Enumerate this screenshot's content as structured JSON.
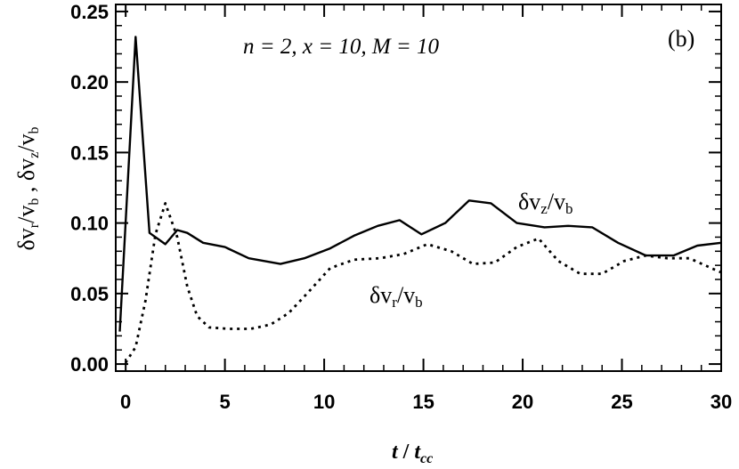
{
  "chart_data": {
    "type": "line",
    "panel_label": "(b)",
    "annotation": "n = 2, x = 10, M = 10",
    "xlabel_main": "t",
    "xlabel_sep": " / ",
    "xlabel_t": "t",
    "xlabel_sub": "cc",
    "ylabel": "δvr/vb , δvz/vb",
    "xlim": [
      -0.5,
      30
    ],
    "ylim": [
      -0.005,
      0.255
    ],
    "x_ticks": [
      0,
      5,
      10,
      15,
      20,
      25,
      30
    ],
    "x_tick_labels": [
      "0",
      "5",
      "10",
      "15",
      "20",
      "25",
      "30"
    ],
    "y_ticks": [
      0.0,
      0.05,
      0.1,
      0.15,
      0.2,
      0.25
    ],
    "y_tick_labels": [
      "0.00",
      "0.05",
      "0.10",
      "0.15",
      "0.20",
      "0.25"
    ],
    "grid": false,
    "series": [
      {
        "name": "δvz/vb",
        "style": "solid",
        "x": [
          -0.3,
          0.5,
          1.2,
          2.0,
          2.6,
          3.1,
          3.9,
          5.0,
          6.2,
          7.8,
          9.0,
          10.3,
          11.5,
          12.7,
          13.8,
          14.9,
          16.1,
          17.3,
          18.4,
          19.7,
          21.1,
          22.3,
          23.5,
          24.8,
          26.2,
          27.6,
          28.8,
          30.0
        ],
        "values": [
          0.023,
          0.232,
          0.093,
          0.085,
          0.095,
          0.093,
          0.086,
          0.083,
          0.075,
          0.071,
          0.075,
          0.082,
          0.091,
          0.098,
          0.102,
          0.092,
          0.1,
          0.116,
          0.114,
          0.1,
          0.097,
          0.098,
          0.097,
          0.086,
          0.077,
          0.077,
          0.084,
          0.086
        ]
      },
      {
        "name": "δvr/vb",
        "style": "dotted",
        "x": [
          0.0,
          0.5,
          1.0,
          1.5,
          2.0,
          2.6,
          3.1,
          3.6,
          4.2,
          5.2,
          6.3,
          7.3,
          8.2,
          9.2,
          10.3,
          11.5,
          12.8,
          14.0,
          15.2,
          16.4,
          17.5,
          18.6,
          19.7,
          20.8,
          21.8,
          22.9,
          24.0,
          25.1,
          26.2,
          27.3,
          28.4,
          29.5,
          30.0
        ],
        "values": [
          0.001,
          0.012,
          0.045,
          0.092,
          0.114,
          0.09,
          0.055,
          0.034,
          0.026,
          0.025,
          0.025,
          0.028,
          0.036,
          0.051,
          0.068,
          0.074,
          0.075,
          0.078,
          0.085,
          0.08,
          0.071,
          0.072,
          0.083,
          0.089,
          0.073,
          0.064,
          0.064,
          0.073,
          0.077,
          0.075,
          0.075,
          0.068,
          0.065
        ]
      }
    ],
    "curve_labels": [
      {
        "series": "δvz/vb",
        "main": "δv",
        "sub": "z",
        "div": "/v",
        "sub2": "b",
        "at_x": 19.0,
        "at_y": 0.12
      },
      {
        "series": "δvr/vb",
        "main": "δv",
        "sub": "r",
        "div": "/v",
        "sub2": "b",
        "at_x": 12.0,
        "at_y": 0.056
      }
    ]
  }
}
